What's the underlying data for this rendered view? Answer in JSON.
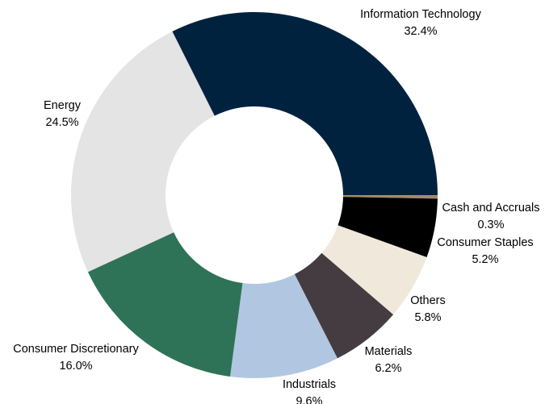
{
  "chart_data": {
    "type": "donut",
    "categories": [
      "Information Technology",
      "Cash and Accruals",
      "Consumer Staples",
      "Others",
      "Materials",
      "Industrials",
      "Consumer Discretionary",
      "Energy"
    ],
    "values": [
      32.4,
      0.3,
      5.2,
      5.8,
      6.2,
      9.6,
      16.0,
      24.5
    ],
    "value_labels": [
      "32.4%",
      "0.3%",
      "5.2%",
      "5.8%",
      "6.2%",
      "9.6%",
      "16.0%",
      "24.5%"
    ],
    "colors": [
      "#00223f",
      "#a08a66",
      "#000000",
      "#f1e8dc",
      "#453c42",
      "#b1c7e1",
      "#2e7358",
      "#e4e4e4"
    ]
  }
}
